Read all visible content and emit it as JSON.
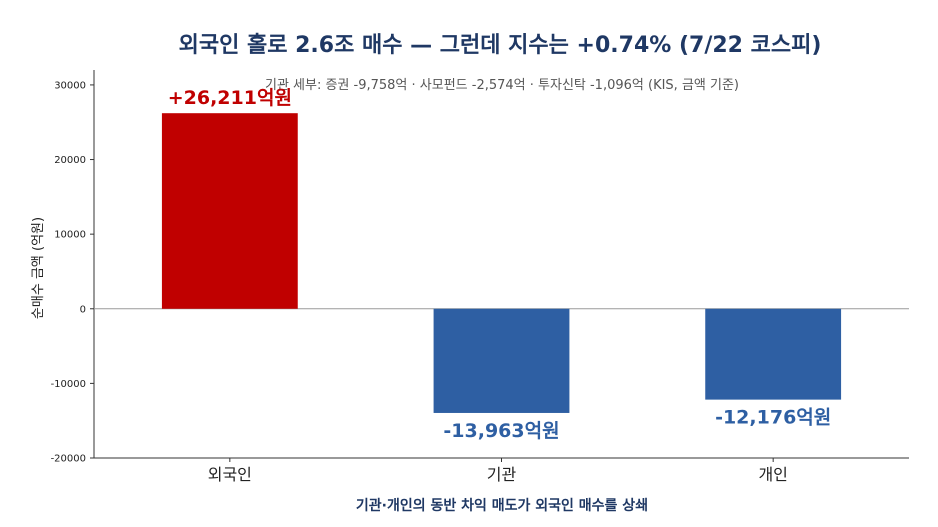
{
  "chart_data": {
    "type": "bar",
    "title": "외국인 홀로 2.6조 매수 — 그런데 지수는 +0.74% (7/22 코스피)",
    "subtitle": "기관 세부: 증권 -9,758억 · 사모펀드 -2,574억 · 투자신탁 -1,096억 (KIS, 금액 기준)",
    "ylabel": "순매수 금액 (억원)",
    "xlabel": "기관·개인의 동반 차익 매도가 외국인 매수를 상쇄",
    "categories": [
      "외국인",
      "기관",
      "개인"
    ],
    "values": [
      26211,
      -13963,
      -12176
    ],
    "data_labels": [
      "+26,211억원",
      "-13,963억원",
      "-12,176억원"
    ],
    "colors": [
      "#c00000",
      "#2e5fa3",
      "#2e5fa3"
    ],
    "label_colors": [
      "#c00000",
      "#2e5fa3",
      "#2e5fa3"
    ],
    "ylim": [
      -20000,
      32000
    ],
    "yticks": [
      -20000,
      -10000,
      0,
      10000,
      20000,
      30000
    ],
    "ytick_labels": [
      "-20000",
      "-10000",
      "0",
      "10000",
      "20000",
      "30000"
    ],
    "grid": false,
    "legend": "none"
  }
}
